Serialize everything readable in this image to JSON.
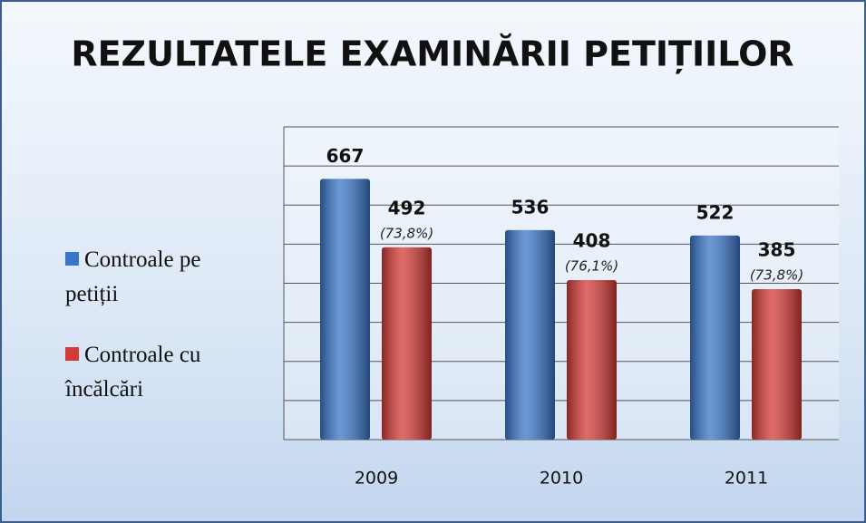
{
  "chart_data": {
    "type": "bar",
    "title": "REZULTATELE EXAMINĂRII PETIȚIILOR",
    "categories": [
      "2009",
      "2010",
      "2011"
    ],
    "series": [
      {
        "name": "Controale pe petiții",
        "color": "#3a76c8",
        "values": [
          667,
          536,
          522
        ]
      },
      {
        "name": "Controale cu încălcări",
        "color": "#d43a36",
        "values": [
          492,
          408,
          385
        ],
        "annotations": [
          "(73,8%)",
          "(76,1%)",
          "(73,8%)"
        ]
      }
    ],
    "ylim": [
      0,
      800
    ],
    "yticks": [
      0,
      100,
      200,
      300,
      400,
      500,
      600,
      700,
      800
    ],
    "grid": true,
    "legend": "left"
  }
}
